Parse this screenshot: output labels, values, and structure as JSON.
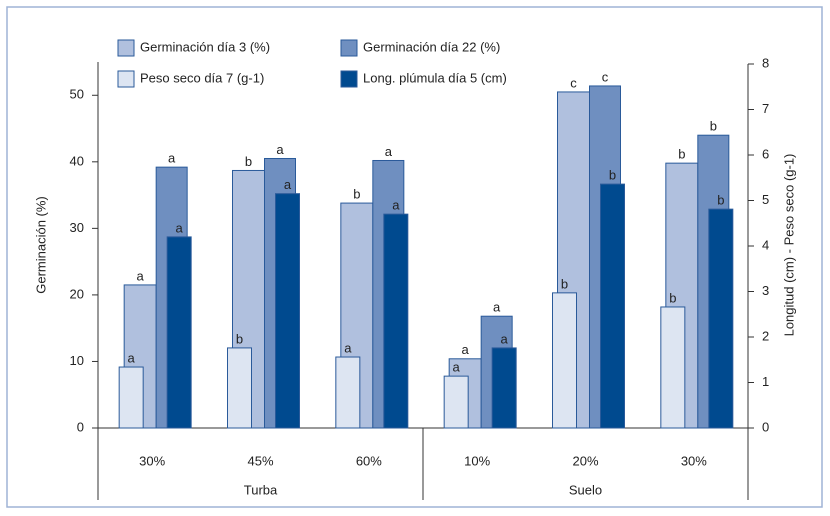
{
  "chart_data": {
    "type": "bar",
    "y_label": "Germinación (%)",
    "y2_label": "Longitud (cm) - Peso seco (g-1)",
    "categories": [
      "30%",
      "45%",
      "60%",
      "10%",
      "20%",
      "30%"
    ],
    "groups": [
      "Turba",
      "Suelo"
    ],
    "series": [
      {
        "name": "Germinación día 3 (%)",
        "color": "#b0c0de",
        "values": [
          21.5,
          38.7,
          33.8,
          10.4,
          50.5,
          39.8
        ],
        "annotations": [
          "a",
          "b",
          "b",
          "a",
          "c",
          "b"
        ]
      },
      {
        "name": "Germinación día 22 (%)",
        "color": "#6f8fc0",
        "values": [
          39.2,
          40.5,
          40.2,
          16.8,
          51.4,
          44.0
        ],
        "annotations": [
          "a",
          "a",
          "a",
          "a",
          "c",
          "b"
        ]
      },
      {
        "name": "Peso seco día 7 (g-1)",
        "color": "#dde5f2",
        "axis": "y2",
        "values": [
          1.34,
          1.76,
          1.56,
          1.14,
          2.97,
          2.66
        ],
        "annotations": [
          "a",
          "b",
          "a",
          "a",
          "b",
          "b"
        ]
      },
      {
        "name": "Long. plúmula día 5 (cm)",
        "color": "#004a8f",
        "axis": "y2",
        "values": [
          4.2,
          5.15,
          4.7,
          1.76,
          5.36,
          4.81
        ],
        "annotations": [
          "a",
          "a",
          "a",
          "a",
          "b",
          "b"
        ]
      }
    ],
    "ylim": [
      0,
      55
    ],
    "yticks": [
      0,
      10,
      20,
      30,
      40,
      50
    ],
    "y2lim": [
      0,
      8
    ],
    "y2ticks": [
      0,
      1,
      2,
      3,
      4,
      5,
      6,
      7,
      8
    ]
  }
}
